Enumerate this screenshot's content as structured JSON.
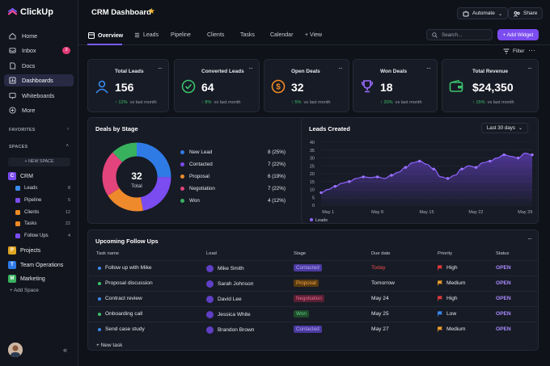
{
  "app": {
    "name": "ClickUp"
  },
  "sidebar": {
    "nav": [
      {
        "label": "Home",
        "icon": "home-icon"
      },
      {
        "label": "Inbox",
        "icon": "inbox-icon",
        "badge": "3"
      },
      {
        "label": "Docs",
        "icon": "docs-icon"
      },
      {
        "label": "Dashboards",
        "icon": "dashboard-icon"
      },
      {
        "label": "Whiteboards",
        "icon": "whiteboard-icon"
      },
      {
        "label": "More",
        "icon": "more-icon"
      }
    ],
    "favorites_label": "FAVORITES",
    "spaces_label": "SPACES",
    "new_space": "+ NEW SPACE",
    "crm": {
      "letter": "C",
      "label": "CRM"
    },
    "crm_items": [
      {
        "label": "Leads",
        "count": "8"
      },
      {
        "label": "Pipeline",
        "count": "5"
      },
      {
        "label": "Clients",
        "count": "12"
      },
      {
        "label": "Tasks",
        "count": "22"
      },
      {
        "label": "Follow Ups",
        "count": "4"
      }
    ],
    "spaces": [
      {
        "letter": "P",
        "label": "Projects"
      },
      {
        "letter": "T",
        "label": "Team Operations"
      },
      {
        "letter": "M",
        "label": "Marketing"
      }
    ],
    "add_space": "+ Add Space",
    "collapse": "«"
  },
  "header": {
    "title": "CRM Dashboard",
    "automate": "Automate",
    "share": "Share"
  },
  "tabs": [
    {
      "label": "Overview"
    },
    {
      "label": "Leads"
    },
    {
      "label": "Pipeline"
    },
    {
      "label": "Clients"
    },
    {
      "label": "Tasks"
    },
    {
      "label": "Calendar"
    },
    {
      "label": "+ View"
    }
  ],
  "toolbar": {
    "search_placeholder": "Search...",
    "add_widget": "+ Add Widget",
    "filter": "Filter"
  },
  "kpis": [
    {
      "label": "Total Leads",
      "value": "156",
      "delta": "↑ 12%",
      "suffix": "vs last month",
      "color": "#3a8bf0"
    },
    {
      "label": "Converted Leads",
      "value": "64",
      "delta": "↑ 8%",
      "suffix": "vs last month",
      "color": "#3bc26b"
    },
    {
      "label": "Open Deals",
      "value": "32",
      "delta": "↑ 5%",
      "suffix": "vs last month",
      "color": "#f08a24"
    },
    {
      "label": "Won Deals",
      "value": "18",
      "delta": "↑ 20%",
      "suffix": "vs last month",
      "color": "#9b6cff"
    },
    {
      "label": "Total Revenue",
      "value": "$24,350",
      "delta": "↑ 15%",
      "suffix": "vs last month",
      "color": "#3bc26b"
    }
  ],
  "deals_by_stage": {
    "title": "Deals by Stage",
    "total_value": "32",
    "total_label": "Total",
    "stages": [
      {
        "label": "New Lead",
        "value": "8 (25%)",
        "count": 8,
        "color": "#2f7be6"
      },
      {
        "label": "Contacted",
        "value": "7 (22%)",
        "count": 7,
        "color": "#7b4cf0"
      },
      {
        "label": "Proposal",
        "value": "6 (19%)",
        "count": 6,
        "color": "#ef8a2c"
      },
      {
        "label": "Negotiation",
        "value": "7 (22%)",
        "count": 7,
        "color": "#e3447c"
      },
      {
        "label": "Won",
        "value": "4 (12%)",
        "count": 4,
        "color": "#38b15f"
      }
    ]
  },
  "leads_created": {
    "title": "Leads Created",
    "range": "Last 30 days",
    "legend": "Leads"
  },
  "chart_data": {
    "type": "area",
    "x": [
      "Apr 30",
      "May 1",
      "May 2",
      "May 3",
      "May 4",
      "May 5",
      "May 6",
      "May 7",
      "May 8",
      "May 9",
      "May 10",
      "May 11",
      "May 12",
      "May 13",
      "May 14",
      "May 15",
      "May 16",
      "May 17",
      "May 18",
      "May 19",
      "May 20",
      "May 21",
      "May 22",
      "May 23",
      "May 24",
      "May 25",
      "May 26",
      "May 27",
      "May 28",
      "May 29",
      "May 30"
    ],
    "xticks": [
      "May 1",
      "May 8",
      "May 15",
      "May 22",
      "May 29"
    ],
    "series": [
      {
        "name": "Leads",
        "values": [
          8,
          10,
          12,
          14,
          15,
          17,
          18,
          17.5,
          18,
          17,
          19,
          21,
          24,
          27,
          28,
          26,
          23,
          18,
          17,
          19,
          23,
          25,
          24,
          27,
          28,
          30,
          32,
          31,
          30,
          33,
          32
        ]
      }
    ],
    "ylim": [
      0,
      40
    ],
    "yticks": [
      0,
      5,
      10,
      15,
      20,
      25,
      30,
      35,
      40
    ]
  },
  "followups": {
    "title": "Upcoming Follow Ups",
    "columns": [
      "Task name",
      "Lead",
      "Stage",
      "Due date",
      "Priority",
      "Status"
    ],
    "rows": [
      {
        "task": "Follow up with Mike",
        "lead": "Mike Smith",
        "stage": "Contacted",
        "stage_color": "#4b3aa0",
        "stage_text": "#b9a8ff",
        "due": "Today",
        "due_color": "#ef4b4b",
        "priority": "High",
        "flag": "#e03b3b",
        "status": "OPEN",
        "dot": "#3a8bf0"
      },
      {
        "task": "Proposal discussion",
        "lead": "Sarah Johnson",
        "stage": "Proposal",
        "stage_color": "#5a3b10",
        "stage_text": "#f2a447",
        "due": "Tomorrow",
        "due_color": "#e6e8ee",
        "priority": "Medium",
        "flag": "#f0a02a",
        "status": "OPEN",
        "dot": "#3bc26b"
      },
      {
        "task": "Contract review",
        "lead": "David Lee",
        "stage": "Negotiation",
        "stage_color": "#5a1f33",
        "stage_text": "#f06a95",
        "due": "May 24",
        "due_color": "#e6e8ee",
        "priority": "High",
        "flag": "#e03b3b",
        "status": "OPEN",
        "dot": "#3a8bf0"
      },
      {
        "task": "Onboarding call",
        "lead": "Jessica White",
        "stage": "Won",
        "stage_color": "#1f4a2b",
        "stage_text": "#5fd487",
        "due": "May 25",
        "due_color": "#e6e8ee",
        "priority": "Low",
        "flag": "#3a8bf0",
        "status": "OPEN",
        "dot": "#3bc26b"
      },
      {
        "task": "Send case study",
        "lead": "Brandon Brown",
        "stage": "Contacted",
        "stage_color": "#4b3aa0",
        "stage_text": "#b9a8ff",
        "due": "May 27",
        "due_color": "#e6e8ee",
        "priority": "Medium",
        "flag": "#f0a02a",
        "status": "OPEN",
        "dot": "#3a8bf0"
      }
    ],
    "new_task": "+ New task"
  }
}
